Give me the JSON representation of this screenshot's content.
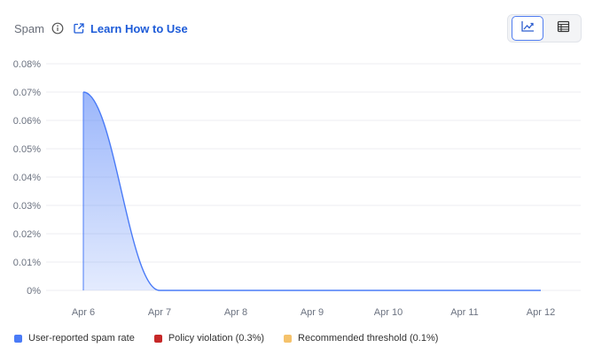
{
  "header": {
    "title": "Spam",
    "learn_label": "Learn How to Use"
  },
  "icons": {
    "info": "info-icon",
    "external_link": "external-link-icon",
    "chart_view": "line-chart-icon",
    "table_view": "table-icon"
  },
  "colors": {
    "series": "#4a7bf7",
    "policy": "#c62828",
    "threshold": "#f5c26b"
  },
  "chart_data": {
    "type": "area",
    "categories": [
      "Apr 6",
      "Apr 7",
      "Apr 8",
      "Apr 9",
      "Apr 10",
      "Apr 11",
      "Apr 12"
    ],
    "series": [
      {
        "name": "User-reported spam rate",
        "values": [
          0.07,
          0,
          0,
          0,
          0,
          0,
          0
        ]
      }
    ],
    "ylim": [
      0,
      0.08
    ],
    "yticks": [
      "0%",
      "0.01%",
      "0.02%",
      "0.03%",
      "0.04%",
      "0.05%",
      "0.06%",
      "0.07%",
      "0.08%"
    ],
    "grid": true,
    "legend_position": "bottom-left"
  },
  "legend": [
    {
      "label": "User-reported spam rate",
      "color": "#4a7bf7"
    },
    {
      "label": "Policy violation (0.3%)",
      "color": "#c62828"
    },
    {
      "label": "Recommended threshold (0.1%)",
      "color": "#f5c26b"
    }
  ]
}
